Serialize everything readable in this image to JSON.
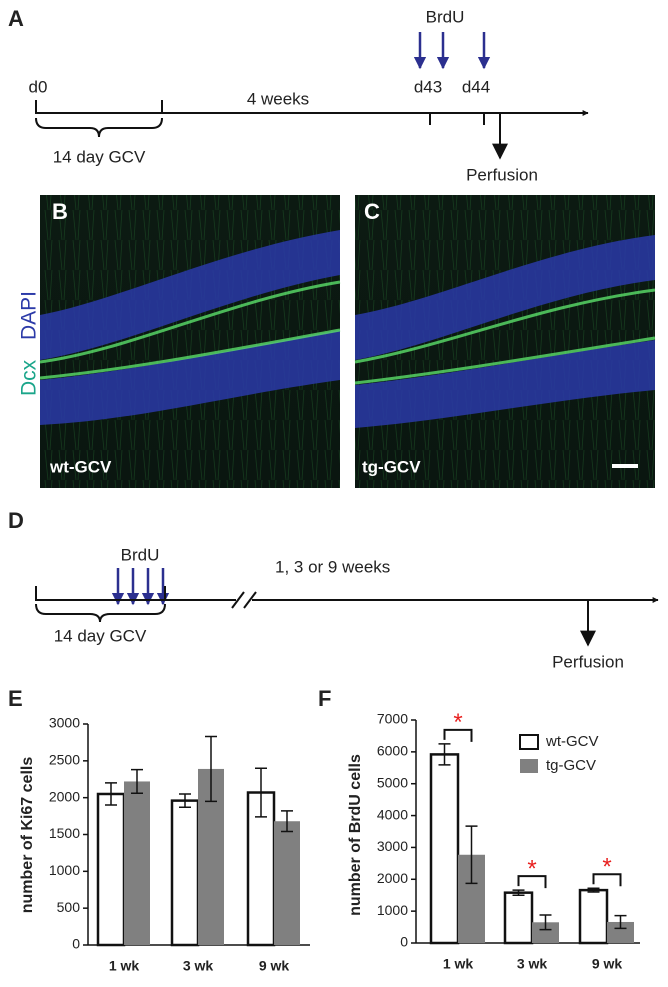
{
  "panels": {
    "a": {
      "label": "A",
      "marker": "BrdU",
      "days": [
        "d0",
        "d43",
        "d44"
      ],
      "interval": "4 weeks",
      "treatment": "14 day GCV",
      "end": "Perfusion"
    },
    "b": {
      "label": "B",
      "group": "wt-GCV"
    },
    "c": {
      "label": "C",
      "group": "tg-GCV"
    },
    "stain": {
      "green": "Dcx",
      "blue": "DAPI"
    },
    "d": {
      "label": "D",
      "marker": "BrdU",
      "interval": "1, 3 or 9 weeks",
      "treatment": "14 day GCV",
      "end": "Perfusion"
    }
  },
  "chart_data": [
    {
      "type": "bar",
      "panel": "E",
      "ylabel": "number of Ki67 cells",
      "categories": [
        "1 wk",
        "3 wk",
        "9 wk"
      ],
      "series": [
        {
          "color": "#ffffff",
          "values": [
            2050,
            1960,
            2070
          ],
          "errors": [
            150,
            90,
            330
          ]
        },
        {
          "color": "#808080",
          "values": [
            2220,
            2390,
            1680
          ],
          "errors": [
            160,
            440,
            140
          ]
        }
      ],
      "ylim": [
        0,
        3000
      ],
      "yticks": [
        0,
        500,
        1000,
        1500,
        2000,
        2500,
        3000
      ]
    },
    {
      "type": "bar",
      "panel": "F",
      "ylabel": "number of BrdU cells",
      "categories": [
        "1 wk",
        "3 wk",
        "9 wk"
      ],
      "series": [
        {
          "name": "wt-GCV",
          "color": "#ffffff",
          "values": [
            5920,
            1580,
            1660
          ],
          "errors": [
            330,
            80,
            60
          ]
        },
        {
          "name": "tg-GCV",
          "color": "#808080",
          "values": [
            2770,
            650,
            660
          ],
          "errors": [
            900,
            230,
            200
          ]
        }
      ],
      "significance": [
        "*",
        "*",
        "*"
      ],
      "legend": "upper right",
      "ylim": [
        0,
        7000
      ],
      "yticks": [
        0,
        1000,
        2000,
        3000,
        4000,
        5000,
        6000,
        7000
      ]
    }
  ]
}
